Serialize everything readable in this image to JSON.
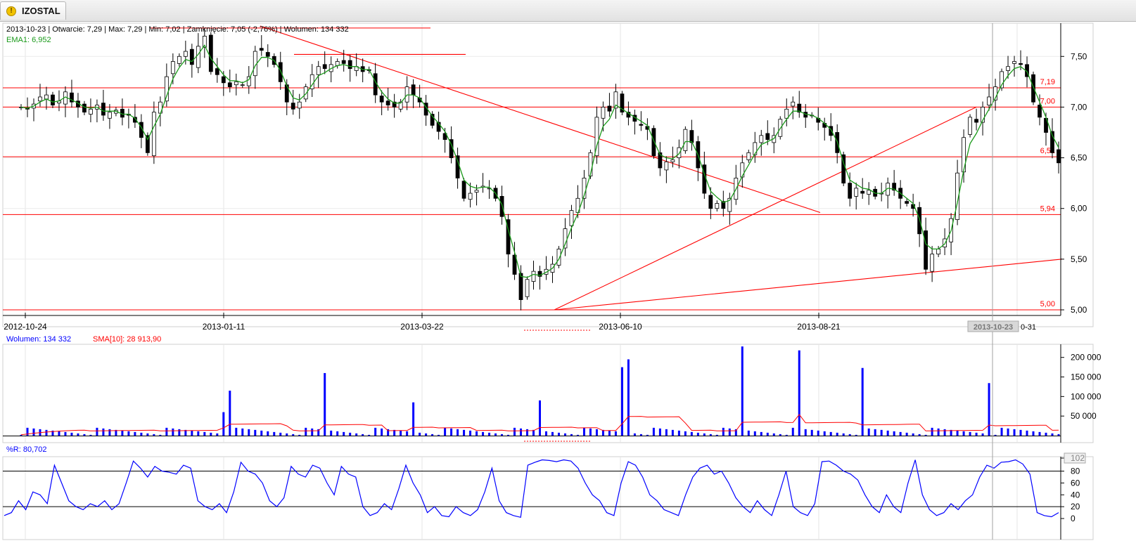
{
  "app": {
    "tab_title": "IZOSTAL",
    "tab_icon": "warning-icon"
  },
  "info_bar": {
    "ohlc": "2013-10-23 | Otwarcie: 7,29 | Max: 7,29 | Min: 7,02 | Zamknięcie: 7,05 (-2,76%)  | Wolumen: 134 332",
    "ema": "EMA1: 6,952"
  },
  "volume_bar": {
    "vol_label": "Wolumen: 134 332",
    "sma_label": "SMA[10]: 28 913,90"
  },
  "wr_bar": {
    "label": "%R: 80,702"
  },
  "price_levels": [
    "7,19",
    "7,00",
    "6,51",
    "5,94",
    "5,00"
  ],
  "date_ticks": [
    "2012-10-24",
    "2013-01-11",
    "2013-03-22",
    "2013-06-10",
    "2013-08-21"
  ],
  "cursor_date": "2013-10-23",
  "last_tick_fragment": "0-31",
  "colors": {
    "up": "#ffffff",
    "down": "#000000",
    "ema": "#1a9a1a",
    "trendline": "#ff0000",
    "volume": "#0000ff",
    "sma": "#ff0000",
    "wr": "#0000ff"
  },
  "chart_data": [
    {
      "type": "candlestick",
      "ylim": [
        5.0,
        7.8
      ],
      "y_ticks": [
        "7,50",
        "7,00",
        "6,50",
        "6,00",
        "5,50",
        "5,00"
      ],
      "x_ticks": [
        "2012-10-24",
        "2013-01-11",
        "2013-03-22",
        "2013-06-10",
        "2013-08-21",
        "2013-10-23"
      ],
      "last_bar": {
        "date": "2013-10-23",
        "open": 7.29,
        "high": 7.29,
        "low": 7.02,
        "close": 7.05,
        "change_pct": -2.76,
        "volume": 134332
      },
      "ema_label": "EMA1: 6,952",
      "close_approx": [
        7.0,
        6.98,
        7.03,
        7.1,
        7.12,
        7.02,
        7.06,
        7.15,
        7.05,
        7.0,
        6.95,
        6.98,
        7.02,
        6.92,
        6.95,
        6.97,
        6.9,
        6.92,
        6.85,
        6.7,
        6.55,
        6.95,
        7.05,
        7.3,
        7.45,
        7.5,
        7.55,
        7.42,
        7.6,
        7.7,
        7.35,
        7.32,
        7.24,
        7.2,
        7.25,
        7.22,
        7.3,
        7.55,
        7.56,
        7.5,
        7.42,
        7.25,
        7.05,
        6.98,
        7.05,
        7.2,
        7.32,
        7.4,
        7.38,
        7.42,
        7.45,
        7.43,
        7.38,
        7.4,
        7.35,
        7.36,
        7.12,
        7.05,
        7.02,
        7.0,
        7.05,
        7.2,
        7.12,
        7.05,
        6.92,
        6.82,
        6.76,
        6.68,
        6.5,
        6.3,
        6.1,
        6.15,
        6.18,
        6.22,
        6.2,
        6.1,
        5.92,
        5.55,
        5.35,
        5.1,
        5.3,
        5.38,
        5.33,
        5.4,
        5.45,
        5.6,
        5.8,
        5.98,
        6.1,
        6.3,
        6.55,
        6.9,
        7.0,
        6.96,
        7.15,
        6.95,
        6.9,
        6.86,
        6.82,
        6.78,
        6.52,
        6.4,
        6.46,
        6.48,
        6.6,
        6.78,
        6.65,
        6.4,
        6.15,
        6.0,
        6.05,
        6.0,
        6.1,
        6.3,
        6.45,
        6.55,
        6.65,
        6.72,
        6.68,
        6.72,
        6.88,
        6.98,
        7.05,
        6.95,
        6.9,
        6.92,
        6.85,
        6.8,
        6.72,
        6.55,
        6.25,
        6.1,
        6.2,
        6.15,
        6.18,
        6.12,
        6.15,
        6.25,
        6.18,
        6.1,
        6.05,
        6.0,
        5.75,
        5.4,
        5.55,
        5.6,
        5.7,
        5.9,
        6.35,
        6.7,
        6.9,
        6.85,
        7.0,
        7.1,
        7.2,
        7.35,
        7.4,
        7.45,
        7.42,
        7.3,
        7.05,
        6.9,
        6.75,
        6.55,
        6.45
      ],
      "ema_approx": [
        7.0,
        6.99,
        7.01,
        7.05,
        7.08,
        7.05,
        7.06,
        7.1,
        7.07,
        7.04,
        7.0,
        6.99,
        7.0,
        6.96,
        6.96,
        6.96,
        6.93,
        6.93,
        6.89,
        6.8,
        6.68,
        6.81,
        6.93,
        7.11,
        7.28,
        7.39,
        7.47,
        7.45,
        7.52,
        7.61,
        7.48,
        7.4,
        7.32,
        7.26,
        7.26,
        7.24,
        7.27,
        7.41,
        7.49,
        7.49,
        7.46,
        7.36,
        7.21,
        7.09,
        7.07,
        7.13,
        7.22,
        7.31,
        7.34,
        7.38,
        7.41,
        7.42,
        7.4,
        7.4,
        7.37,
        7.37,
        7.25,
        7.15,
        7.08,
        7.04,
        7.04,
        7.12,
        7.12,
        7.09,
        7.0,
        6.91,
        6.84,
        6.76,
        6.63,
        6.47,
        6.28,
        6.22,
        6.2,
        6.21,
        6.21,
        6.15,
        6.04,
        5.79,
        5.57,
        5.33,
        5.32,
        5.35,
        5.34,
        5.37,
        5.41,
        5.5,
        5.65,
        5.81,
        5.95,
        6.13,
        6.34,
        6.62,
        6.81,
        6.88,
        7.02,
        6.98,
        6.94,
        6.9,
        6.86,
        6.82,
        6.67,
        6.53,
        6.5,
        6.49,
        6.54,
        6.66,
        6.66,
        6.53,
        6.34,
        6.17,
        6.11,
        6.06,
        6.08,
        6.19,
        6.32,
        6.43,
        6.54,
        6.63,
        6.66,
        6.69,
        6.79,
        6.88,
        6.96,
        6.96,
        6.93,
        6.92,
        6.89,
        6.84,
        6.78,
        6.66,
        6.45,
        6.28,
        6.24,
        6.2,
        6.19,
        6.15,
        6.15,
        6.2,
        6.19,
        6.15,
        6.1,
        6.05,
        5.9,
        5.65,
        5.6,
        5.6,
        5.65,
        5.78,
        6.06,
        6.38,
        6.64,
        6.74,
        6.87,
        6.98,
        7.09,
        7.22,
        7.31,
        7.38,
        7.4,
        7.35,
        7.2,
        7.05,
        6.9,
        6.72,
        6.6
      ]
    },
    {
      "type": "bar",
      "name": "Wolumen",
      "y_ticks": [
        "200 000",
        "150 000",
        "100 000",
        "50 000"
      ],
      "ylim": [
        0,
        230000
      ],
      "last_value": 134332,
      "overlay": {
        "name": "SMA[10]",
        "last_value": 28913.9
      },
      "spikes_approx": [
        {
          "date": "2012-12-29",
          "value": 60000
        },
        {
          "date": "2013-01-04",
          "value": 115000
        },
        {
          "date": "2013-02-10",
          "value": 160000
        },
        {
          "date": "2013-03-20",
          "value": 85000
        },
        {
          "date": "2013-05-02",
          "value": 90000
        },
        {
          "date": "2013-06-08",
          "value": 175000
        },
        {
          "date": "2013-06-10",
          "value": 195000
        },
        {
          "date": "2013-07-30",
          "value": 228000
        },
        {
          "date": "2013-08-12",
          "value": 218000
        },
        {
          "date": "2013-09-16",
          "value": 173000
        },
        {
          "date": "2013-10-23",
          "value": 134332
        }
      ]
    },
    {
      "type": "line",
      "name": "%R",
      "y_ticks": [
        "102",
        "80",
        "60",
        "40",
        "20",
        "0"
      ],
      "ylim": [
        0,
        102
      ],
      "levels": [
        20,
        80
      ],
      "last_value": 80.702,
      "values_approx": [
        5,
        10,
        30,
        15,
        45,
        40,
        25,
        90,
        60,
        30,
        20,
        15,
        25,
        20,
        30,
        15,
        25,
        60,
        97,
        85,
        70,
        88,
        80,
        78,
        75,
        90,
        85,
        30,
        20,
        15,
        25,
        10,
        45,
        95,
        80,
        75,
        60,
        30,
        20,
        35,
        88,
        75,
        70,
        90,
        85,
        60,
        40,
        88,
        75,
        70,
        20,
        5,
        10,
        25,
        15,
        50,
        90,
        60,
        40,
        10,
        20,
        5,
        3,
        20,
        10,
        5,
        15,
        45,
        85,
        30,
        10,
        5,
        2,
        90,
        95,
        99,
        98,
        96,
        99,
        97,
        85,
        60,
        40,
        30,
        10,
        5,
        60,
        96,
        90,
        70,
        40,
        30,
        15,
        10,
        5,
        40,
        70,
        85,
        90,
        75,
        80,
        60,
        35,
        20,
        10,
        30,
        15,
        5,
        40,
        80,
        20,
        10,
        5,
        25,
        96,
        97,
        90,
        80,
        75,
        65,
        40,
        20,
        10,
        40,
        20,
        10,
        60,
        99,
        40,
        15,
        5,
        10,
        25,
        15,
        30,
        40,
        70,
        90,
        85,
        95,
        96,
        99,
        92,
        75,
        10,
        5,
        3,
        10
      ]
    }
  ]
}
